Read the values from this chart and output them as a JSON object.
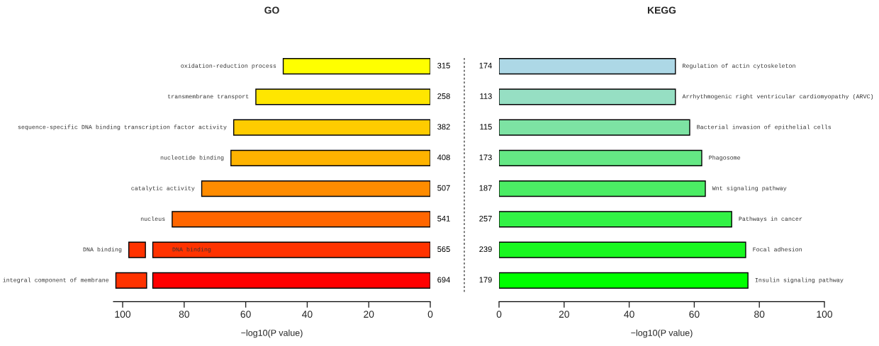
{
  "chart_data": [
    {
      "type": "bar",
      "orientation": "horizontal",
      "title": "GO",
      "xlabel": "−log10(P value)",
      "categories": [
        "oxidation-reduction process",
        "transmembrane transport",
        "sequence-specific DNA binding transcription factor activity",
        "nucleotide binding",
        "catalytic activity",
        "nucleus",
        "DNA binding",
        "integral component of membrane"
      ],
      "series": [
        {
          "values": [
            47.8,
            56.7,
            63.9,
            64.8,
            74.3,
            83.9,
            90.2,
            90.2
          ],
          "colors": [
            "#ffff00",
            "#ffe600",
            "#ffcc00",
            "#ffb300",
            "#ff8c00",
            "#ff6600",
            "#ff3300",
            "#ff0000"
          ]
        },
        {
          "values": [
            null,
            null,
            null,
            null,
            null,
            null,
            5.4,
            10
          ],
          "base": [
            null,
            null,
            null,
            null,
            null,
            null,
            92.6,
            92.2
          ],
          "colors": [
            "#ff3300",
            "#ff3300",
            "#ff3300",
            "#ff3300",
            "#ff3300",
            "#ff3300",
            "#ff3300",
            "#ff3300"
          ]
        }
      ],
      "annotations": [
        "DNA binding",
        "315",
        "258",
        "382",
        "408",
        "507",
        "541",
        "565",
        "694"
      ],
      "xlim": [
        103,
        0
      ],
      "xticks": [
        100,
        80,
        60,
        40,
        20,
        0
      ],
      "tick_labels": "x"
    },
    {
      "type": "bar",
      "orientation": "horizontal",
      "title": "KEGG",
      "xlabel": "−log10(P value)",
      "categories": [
        "Regulation of actin cytoskeleton",
        "Arrhythmogenic right ventricular cardiomyopathy (ARVC)",
        "Bacterial invasion of epithelial cells",
        "Phagosome",
        "Wnt signaling pathway",
        "Pathways in cancer",
        "Focal adhesion",
        "Insulin signaling pathway"
      ],
      "series": [
        {
          "values": [
            54.2,
            54.2,
            58.6,
            62.3,
            63.4,
            71.5,
            75.8,
            76.5
          ],
          "colors": [
            "#add8e6",
            "#96dfc3",
            "#7de3a3",
            "#64e884",
            "#4bed64",
            "#32f245",
            "#19f720",
            "#00ff00"
          ]
        }
      ],
      "annotations": [
        "174",
        "113",
        "115",
        "173",
        "187",
        "257",
        "239",
        "179"
      ],
      "xlim": [
        0,
        100
      ],
      "xticks": [
        0,
        20,
        40,
        60,
        80,
        100
      ],
      "tick_labels": "x"
    }
  ]
}
